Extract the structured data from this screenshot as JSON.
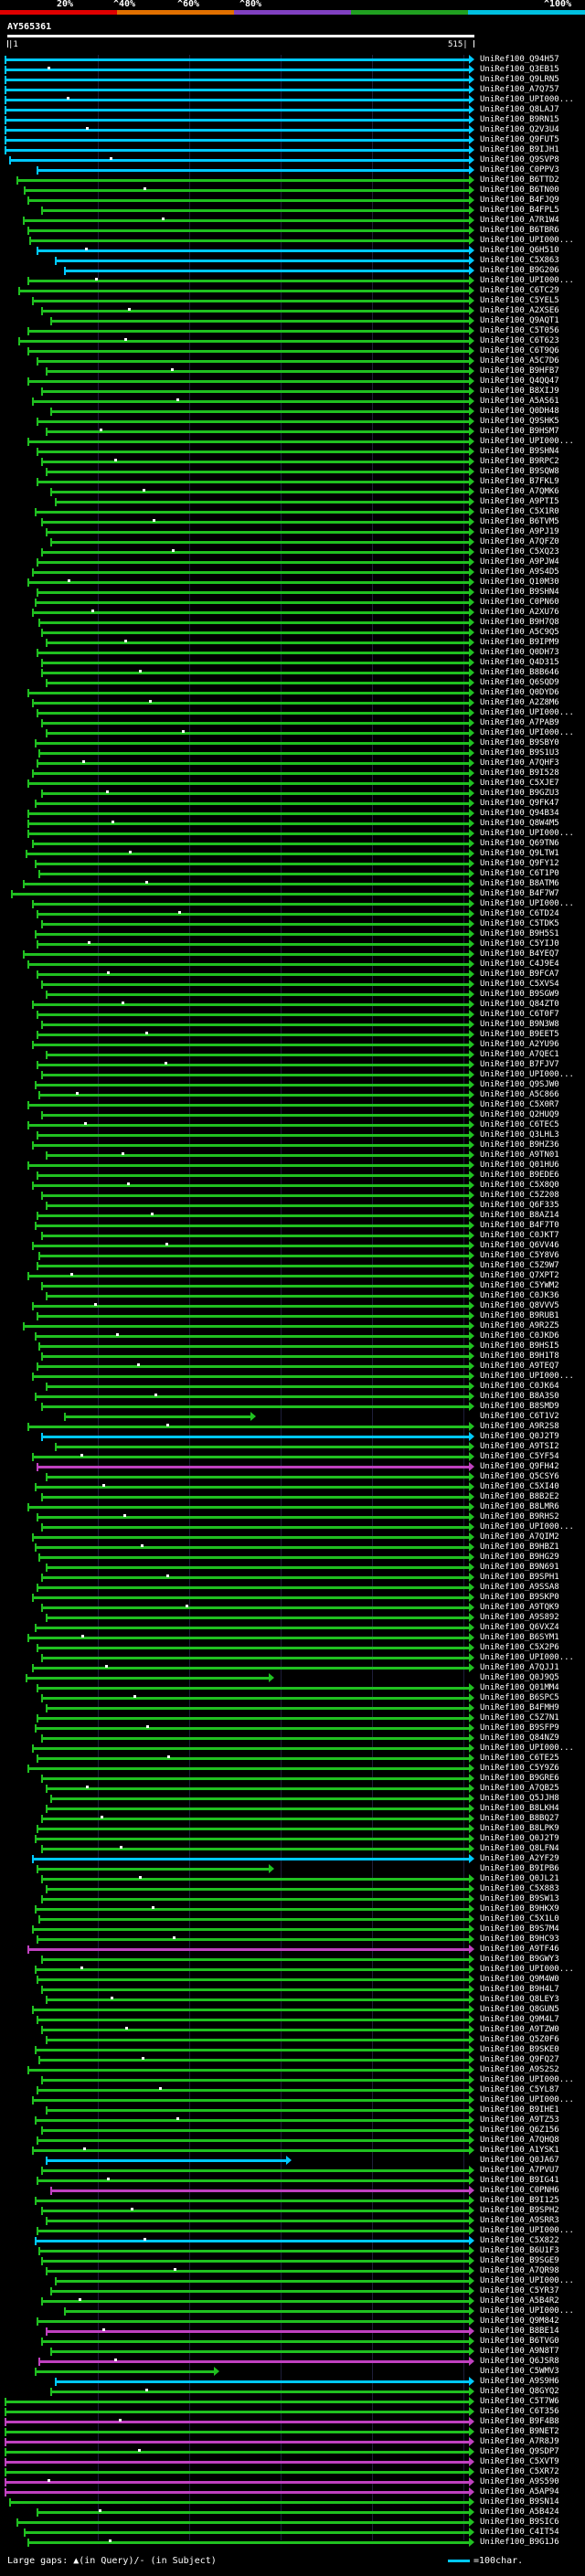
{
  "legend": {
    "labels": [
      "20%",
      "^40%",
      "^60%",
      "^80%",
      "^100%"
    ],
    "colors": [
      "#e00000",
      "#e07000",
      "#8040c0",
      "#20a020",
      "#00c0e0"
    ]
  },
  "header": {
    "title": "AY565361",
    "start_tick": "|1",
    "end_tick": "515|"
  },
  "footer": {
    "gaps_text": "Large gaps: ▲(in Query)/- (in Subject)",
    "scale_text": "=100char."
  },
  "colors": {
    "cyan": "#00c8ff",
    "green": "#20c020",
    "magenta": "#c040c0",
    "grid": "#1e1e3a",
    "white": "#ffffff"
  },
  "hits": [
    {
      "label": "UniRef100_Q94H57",
      "color": "cyan"
    },
    {
      "label": "UniRef100_Q3EB15",
      "color": "cyan"
    },
    {
      "label": "UniRef100_Q9LRN5",
      "color": "cyan"
    },
    {
      "label": "UniRef100_A7Q757",
      "color": "cyan"
    },
    {
      "label": "UniRef100_UPI000...",
      "color": "cyan"
    },
    {
      "label": "UniRef100_Q8LAJ7",
      "color": "cyan"
    },
    {
      "label": "UniRef100_B9RN15",
      "color": "cyan"
    },
    {
      "label": "UniRef100_Q2V3U4",
      "color": "cyan"
    },
    {
      "label": "UniRef100_Q9FUT5",
      "color": "cyan"
    },
    {
      "label": "UniRef100_B9IJH1",
      "color": "cyan"
    },
    {
      "label": "UniRef100_Q9SVP8",
      "color": "cyan"
    },
    {
      "label": "UniRef100_C0PPV3",
      "color": "cyan"
    },
    {
      "label": "UniRef100_B6TTD2",
      "color": "green"
    },
    {
      "label": "UniRef100_B6TN00",
      "color": "green"
    },
    {
      "label": "UniRef100_B4FJQ9",
      "color": "green"
    },
    {
      "label": "UniRef100_B4FPL5",
      "color": "green"
    },
    {
      "label": "UniRef100_A7R1W4",
      "color": "green"
    },
    {
      "label": "UniRef100_B6TBR6",
      "color": "green"
    },
    {
      "label": "UniRef100_UPI000...",
      "color": "green"
    },
    {
      "label": "UniRef100_Q6H510",
      "color": "cyan"
    },
    {
      "label": "UniRef100_C5X863",
      "color": "cyan"
    },
    {
      "label": "UniRef100_B9G206",
      "color": "cyan"
    },
    {
      "label": "UniRef100_UPI000...",
      "color": "green"
    },
    {
      "label": "UniRef100_C6TC29",
      "color": "green"
    },
    {
      "label": "UniRef100_C5YEL5",
      "color": "green"
    },
    {
      "label": "UniRef100_A2XSE6",
      "color": "green"
    },
    {
      "label": "UniRef100_Q9AQT1",
      "color": "green"
    },
    {
      "label": "UniRef100_C5T056",
      "color": "green"
    },
    {
      "label": "UniRef100_C6T623",
      "color": "green"
    },
    {
      "label": "UniRef100_C6T9Q6",
      "color": "green"
    },
    {
      "label": "UniRef100_A5C7D6",
      "color": "green"
    },
    {
      "label": "UniRef100_B9HFB7",
      "color": "green"
    },
    {
      "label": "UniRef100_Q4QQ47",
      "color": "green"
    },
    {
      "label": "UniRef100_B8XIJ9",
      "color": "green"
    },
    {
      "label": "UniRef100_A5AS61",
      "color": "green"
    },
    {
      "label": "UniRef100_Q0DH48",
      "color": "green"
    },
    {
      "label": "UniRef100_Q9SHK5",
      "color": "green"
    },
    {
      "label": "UniRef100_B9HSM7",
      "color": "green"
    },
    {
      "label": "UniRef100_UPI000...",
      "color": "green"
    },
    {
      "label": "UniRef100_B9SHN4",
      "color": "green"
    },
    {
      "label": "UniRef100_B9RPC2",
      "color": "green"
    },
    {
      "label": "UniRef100_B9SQW8",
      "color": "green"
    },
    {
      "label": "UniRef100_B7FKL9",
      "color": "green"
    },
    {
      "label": "UniRef100_A7QMK6",
      "color": "green"
    },
    {
      "label": "UniRef100_A9PTI5",
      "color": "green"
    },
    {
      "label": "UniRef100_C5X1R0",
      "color": "green"
    },
    {
      "label": "UniRef100_B6TVM5",
      "color": "green"
    },
    {
      "label": "UniRef100_A9PJ19",
      "color": "green"
    },
    {
      "label": "UniRef100_A7QFZ0",
      "color": "green"
    },
    {
      "label": "UniRef100_C5XQ23",
      "color": "green"
    },
    {
      "label": "UniRef100_A9PJW4",
      "color": "green"
    },
    {
      "label": "UniRef100_A9S4D5",
      "color": "green"
    },
    {
      "label": "UniRef100_Q10M30",
      "color": "green"
    },
    {
      "label": "UniRef100_B9SHN4",
      "color": "green"
    },
    {
      "label": "UniRef100_C0PN60",
      "color": "green"
    },
    {
      "label": "UniRef100_A2XU76",
      "color": "green"
    },
    {
      "label": "UniRef100_B9H7Q8",
      "color": "green"
    },
    {
      "label": "UniRef100_A5C9Q5",
      "color": "green"
    },
    {
      "label": "UniRef100_B9IPM9",
      "color": "green"
    },
    {
      "label": "UniRef100_Q0DH73",
      "color": "green"
    },
    {
      "label": "UniRef100_Q4D315",
      "color": "green"
    },
    {
      "label": "UniRef100_B8B646",
      "color": "green"
    },
    {
      "label": "UniRef100_Q6SQD9",
      "color": "green"
    },
    {
      "label": "UniRef100_Q0DYD6",
      "color": "green"
    },
    {
      "label": "UniRef100_A2Z8M6",
      "color": "green"
    },
    {
      "label": "UniRef100_UPI000...",
      "color": "green"
    },
    {
      "label": "UniRef100_A7PAB9",
      "color": "green"
    },
    {
      "label": "UniRef100_UPI000...",
      "color": "green"
    },
    {
      "label": "UniRef100_B9SBY0",
      "color": "green"
    },
    {
      "label": "UniRef100_B9S1U3",
      "color": "green"
    },
    {
      "label": "UniRef100_A7QHF3",
      "color": "green"
    },
    {
      "label": "UniRef100_B9I528",
      "color": "green"
    },
    {
      "label": "UniRef100_C5XJE7",
      "color": "green"
    },
    {
      "label": "UniRef100_B9GZU3",
      "color": "green"
    },
    {
      "label": "UniRef100_Q9FK47",
      "color": "green"
    },
    {
      "label": "UniRef100_Q94B34",
      "color": "green"
    },
    {
      "label": "UniRef100_Q8W4M5",
      "color": "green"
    },
    {
      "label": "UniRef100_UPI000...",
      "color": "green"
    },
    {
      "label": "UniRef100_Q69TN6",
      "color": "green"
    },
    {
      "label": "UniRef100_Q9LTW1",
      "color": "green"
    },
    {
      "label": "UniRef100_Q9FY12",
      "color": "green"
    },
    {
      "label": "UniRef100_C6T1P0",
      "color": "green"
    },
    {
      "label": "UniRef100_B8ATM6",
      "color": "green"
    },
    {
      "label": "UniRef100_B4F7W7",
      "color": "green"
    },
    {
      "label": "UniRef100_UPI000...",
      "color": "green"
    },
    {
      "label": "UniRef100_C6TD24",
      "color": "green"
    },
    {
      "label": "UniRef100_C5TDK5",
      "color": "green"
    },
    {
      "label": "UniRef100_B9H5S1",
      "color": "green"
    },
    {
      "label": "UniRef100_C5YIJ0",
      "color": "green"
    },
    {
      "label": "UniRef100_B4YEQ7",
      "color": "green"
    },
    {
      "label": "UniRef100_C4J9E4",
      "color": "green"
    },
    {
      "label": "UniRef100_B9FCA7",
      "color": "green"
    },
    {
      "label": "UniRef100_C5XVS4",
      "color": "green"
    },
    {
      "label": "UniRef100_B9SGW9",
      "color": "green"
    },
    {
      "label": "UniRef100_Q84ZT0",
      "color": "green"
    },
    {
      "label": "UniRef100_C6T0F7",
      "color": "green"
    },
    {
      "label": "UniRef100_B9N3W8",
      "color": "green"
    },
    {
      "label": "UniRef100_B9EET5",
      "color": "green"
    },
    {
      "label": "UniRef100_A2YU96",
      "color": "green"
    },
    {
      "label": "UniRef100_A7QEC1",
      "color": "green"
    },
    {
      "label": "UniRef100_B7FJV7",
      "color": "green"
    },
    {
      "label": "UniRef100_UPI000...",
      "color": "green"
    },
    {
      "label": "UniRef100_Q9SJW0",
      "color": "green"
    },
    {
      "label": "UniRef100_A5C866",
      "color": "green"
    },
    {
      "label": "UniRef100_C5X0R7",
      "color": "green"
    },
    {
      "label": "UniRef100_Q2HUQ9",
      "color": "green"
    },
    {
      "label": "UniRef100_C6TEC5",
      "color": "green"
    },
    {
      "label": "UniRef100_Q3LHL3",
      "color": "green"
    },
    {
      "label": "UniRef100_B9HZ36",
      "color": "green"
    },
    {
      "label": "UniRef100_A9TN01",
      "color": "green"
    },
    {
      "label": "UniRef100_Q01HU6",
      "color": "green"
    },
    {
      "label": "UniRef100_B9EDE6",
      "color": "green"
    },
    {
      "label": "UniRef100_C5X8Q0",
      "color": "green"
    },
    {
      "label": "UniRef100_C5Z208",
      "color": "green"
    },
    {
      "label": "UniRef100_Q6F335",
      "color": "green"
    },
    {
      "label": "UniRef100_B8AZ14",
      "color": "green"
    },
    {
      "label": "UniRef100_B4F7T0",
      "color": "green"
    },
    {
      "label": "UniRef100_C0JKT7",
      "color": "green"
    },
    {
      "label": "UniRef100_Q6VV46",
      "color": "green"
    },
    {
      "label": "UniRef100_C5Y8V6",
      "color": "green"
    },
    {
      "label": "UniRef100_C5Z9W7",
      "color": "green"
    },
    {
      "label": "UniRef100_Q7XPT2",
      "color": "green"
    },
    {
      "label": "UniRef100_C5YWM2",
      "color": "green"
    },
    {
      "label": "UniRef100_C0JK36",
      "color": "green"
    },
    {
      "label": "UniRef100_Q8VVV5",
      "color": "green"
    },
    {
      "label": "UniRef100_B9RUB1",
      "color": "green"
    },
    {
      "label": "UniRef100_A9R2Z5",
      "color": "green"
    },
    {
      "label": "UniRef100_C0JKD6",
      "color": "green"
    },
    {
      "label": "UniRef100_B9HSI5",
      "color": "green"
    },
    {
      "label": "UniRef100_B9H1T8",
      "color": "green"
    },
    {
      "label": "UniRef100_A9TEQ7",
      "color": "green"
    },
    {
      "label": "UniRef100_UPI000...",
      "color": "green"
    },
    {
      "label": "UniRef100_C0JK64",
      "color": "green"
    },
    {
      "label": "UniRef100_B8A3S0",
      "color": "green"
    },
    {
      "label": "UniRef100_B8SMD9",
      "color": "green"
    },
    {
      "label": "UniRef100_C6T1V2",
      "color": "green"
    },
    {
      "label": "UniRef100_A9R2S8",
      "color": "green"
    },
    {
      "label": "UniRef100_Q0J2T9",
      "color": "cyan"
    },
    {
      "label": "UniRef100_A9TSI2",
      "color": "green"
    },
    {
      "label": "UniRef100_C5YF54",
      "color": "green"
    },
    {
      "label": "UniRef100_Q9FH42",
      "color": "magenta"
    },
    {
      "label": "UniRef100_Q5CSY6",
      "color": "green"
    },
    {
      "label": "UniRef100_C5XI40",
      "color": "green"
    },
    {
      "label": "UniRef100_B8B2E2",
      "color": "green"
    },
    {
      "label": "UniRef100_B8LMR6",
      "color": "green"
    },
    {
      "label": "UniRef100_B9RHS2",
      "color": "green"
    },
    {
      "label": "UniRef100_UPI000...",
      "color": "green"
    },
    {
      "label": "UniRef100_A7QIM2",
      "color": "green"
    },
    {
      "label": "UniRef100_B9HBZ1",
      "color": "green"
    },
    {
      "label": "UniRef100_B9HG29",
      "color": "green"
    },
    {
      "label": "UniRef100_B9N691",
      "color": "green"
    },
    {
      "label": "UniRef100_B9SPH1",
      "color": "green"
    },
    {
      "label": "UniRef100_A9SSA8",
      "color": "green"
    },
    {
      "label": "UniRef100_B9SKP0",
      "color": "green"
    },
    {
      "label": "UniRef100_A9TQK9",
      "color": "green"
    },
    {
      "label": "UniRef100_A9S892",
      "color": "green"
    },
    {
      "label": "UniRef100_Q6VXZ4",
      "color": "green"
    },
    {
      "label": "UniRef100_B6SYM1",
      "color": "green"
    },
    {
      "label": "UniRef100_C5X2P6",
      "color": "green"
    },
    {
      "label": "UniRef100_UPI000...",
      "color": "green"
    },
    {
      "label": "UniRef100_A7QJJ1",
      "color": "green"
    },
    {
      "label": "UniRef100_Q0J9Q5",
      "color": "green"
    },
    {
      "label": "UniRef100_Q01MM4",
      "color": "green"
    },
    {
      "label": "UniRef100_B6SPC5",
      "color": "green"
    },
    {
      "label": "UniRef100_B4FMH9",
      "color": "green"
    },
    {
      "label": "UniRef100_C5Z7N1",
      "color": "green"
    },
    {
      "label": "UniRef100_B9SFP9",
      "color": "green"
    },
    {
      "label": "UniRef100_Q84NZ9",
      "color": "green"
    },
    {
      "label": "UniRef100_UPI000...",
      "color": "green"
    },
    {
      "label": "UniRef100_C6TE25",
      "color": "green"
    },
    {
      "label": "UniRef100_C5Y9Z6",
      "color": "green"
    },
    {
      "label": "UniRef100_B9GRE6",
      "color": "green"
    },
    {
      "label": "UniRef100_A7QB25",
      "color": "green"
    },
    {
      "label": "UniRef100_Q5JJH8",
      "color": "green"
    },
    {
      "label": "UniRef100_B8LKH4",
      "color": "green"
    },
    {
      "label": "UniRef100_B8BQ27",
      "color": "green"
    },
    {
      "label": "UniRef100_B8LPK9",
      "color": "green"
    },
    {
      "label": "UniRef100_Q0J2T9",
      "color": "green"
    },
    {
      "label": "UniRef100_Q8LFN4",
      "color": "green"
    },
    {
      "label": "UniRef100_A2YF29",
      "color": "cyan"
    },
    {
      "label": "UniRef100_B9IPB6",
      "color": "green"
    },
    {
      "label": "UniRef100_Q0JL21",
      "color": "green"
    },
    {
      "label": "UniRef100_C5X883",
      "color": "green"
    },
    {
      "label": "UniRef100_B9SW13",
      "color": "green"
    },
    {
      "label": "UniRef100_B9HKX9",
      "color": "green"
    },
    {
      "label": "UniRef100_C5X1L0",
      "color": "green"
    },
    {
      "label": "UniRef100_B9S7M4",
      "color": "green"
    },
    {
      "label": "UniRef100_B9HC93",
      "color": "green"
    },
    {
      "label": "UniRef100_A9TF46",
      "color": "magenta"
    },
    {
      "label": "UniRef100_B9GWY3",
      "color": "green"
    },
    {
      "label": "UniRef100_UPI000...",
      "color": "green"
    },
    {
      "label": "UniRef100_Q9M4W0",
      "color": "green"
    },
    {
      "label": "UniRef100_B9H4L7",
      "color": "green"
    },
    {
      "label": "UniRef100_Q8LEY3",
      "color": "green"
    },
    {
      "label": "UniRef100_Q8GUN5",
      "color": "green"
    },
    {
      "label": "UniRef100_Q9M4L7",
      "color": "green"
    },
    {
      "label": "UniRef100_A9TZW0",
      "color": "green"
    },
    {
      "label": "UniRef100_Q5Z0F6",
      "color": "green"
    },
    {
      "label": "UniRef100_B9SKE0",
      "color": "green"
    },
    {
      "label": "UniRef100_Q9FQ27",
      "color": "green"
    },
    {
      "label": "UniRef100_A9S2S2",
      "color": "green"
    },
    {
      "label": "UniRef100_UPI000...",
      "color": "green"
    },
    {
      "label": "UniRef100_C5YL87",
      "color": "green"
    },
    {
      "label": "UniRef100_UPI000...",
      "color": "green"
    },
    {
      "label": "UniRef100_B9IHE1",
      "color": "green"
    },
    {
      "label": "UniRef100_A9TZ53",
      "color": "green"
    },
    {
      "label": "UniRef100_Q6Z156",
      "color": "green"
    },
    {
      "label": "UniRef100_A7QHQ8",
      "color": "green"
    },
    {
      "label": "UniRef100_A1YSK1",
      "color": "green"
    },
    {
      "label": "UniRef100_Q0JA67",
      "color": "cyan"
    },
    {
      "label": "UniRef100_A7PVU7",
      "color": "green"
    },
    {
      "label": "UniRef100_B9IG41",
      "color": "green"
    },
    {
      "label": "UniRef100_C0PNH6",
      "color": "magenta"
    },
    {
      "label": "UniRef100_B9I125",
      "color": "green"
    },
    {
      "label": "UniRef100_B9SPH2",
      "color": "green"
    },
    {
      "label": "UniRef100_A9SRR3",
      "color": "green"
    },
    {
      "label": "UniRef100_UPI000...",
      "color": "green"
    },
    {
      "label": "UniRef100_C5X822",
      "color": "cyan"
    },
    {
      "label": "UniRef100_B6U1F3",
      "color": "green"
    },
    {
      "label": "UniRef100_B9SGE9",
      "color": "green"
    },
    {
      "label": "UniRef100_A7QR98",
      "color": "green"
    },
    {
      "label": "UniRef100_UPI000...",
      "color": "green"
    },
    {
      "label": "UniRef100_C5YR37",
      "color": "green"
    },
    {
      "label": "UniRef100_A5B4R2",
      "color": "green"
    },
    {
      "label": "UniRef100_UPI000...",
      "color": "green"
    },
    {
      "label": "UniRef100_Q9M842",
      "color": "green"
    },
    {
      "label": "UniRef100_B8BE14",
      "color": "magenta"
    },
    {
      "label": "UniRef100_B6TVG0",
      "color": "green"
    },
    {
      "label": "UniRef100_A9N8T7",
      "color": "green"
    },
    {
      "label": "UniRef100_Q6JSR8",
      "color": "magenta"
    },
    {
      "label": "UniRef100_C5WMV3",
      "color": "green"
    },
    {
      "label": "UniRef100_A9S9H6",
      "color": "cyan"
    },
    {
      "label": "UniRef100_Q8GYQ2",
      "color": "green"
    },
    {
      "label": "UniRef100_C5T7W6",
      "color": "green"
    },
    {
      "label": "UniRef100_C6T356",
      "color": "green"
    },
    {
      "label": "UniRef100_B9F4B8",
      "color": "magenta"
    },
    {
      "label": "UniRef100_B9NET2",
      "color": "green"
    },
    {
      "label": "UniRef100_A7R8J9",
      "color": "magenta"
    },
    {
      "label": "UniRef100_Q9SDP7",
      "color": "green"
    },
    {
      "label": "UniRef100_C5XVT9",
      "color": "magenta"
    },
    {
      "label": "UniRef100_C5XR72",
      "color": "green"
    },
    {
      "label": "UniRef100_A9S590",
      "color": "magenta"
    },
    {
      "label": "UniRef100_A5AP94",
      "color": "magenta"
    },
    {
      "label": "UniRef100_B9SN14",
      "color": "green"
    },
    {
      "label": "UniRef100_A5B424",
      "color": "green"
    },
    {
      "label": "UniRef100_B9SIC6",
      "color": "green"
    },
    {
      "label": "UniRef100_C4IT54",
      "color": "green"
    },
    {
      "label": "UniRef100_B9G1J6",
      "color": "green"
    }
  ]
}
